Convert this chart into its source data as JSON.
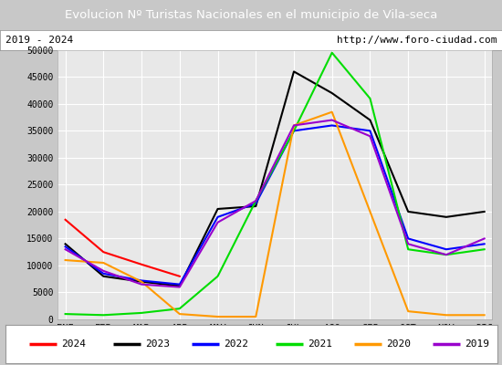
{
  "title": "Evolucion Nº Turistas Nacionales en el municipio de Vila-seca",
  "subtitle_left": "2019 - 2024",
  "subtitle_right": "http://www.foro-ciudad.com",
  "title_bg_color": "#4d8fcc",
  "title_text_color": "#ffffff",
  "plot_bg_color": "#e8e8e8",
  "months": [
    "ENE",
    "FEB",
    "MAR",
    "ABR",
    "MAY",
    "JUN",
    "JUL",
    "AGO",
    "SEP",
    "OCT",
    "NOV",
    "DIC"
  ],
  "ylim": [
    0,
    50000
  ],
  "yticks": [
    0,
    5000,
    10000,
    15000,
    20000,
    25000,
    30000,
    35000,
    40000,
    45000,
    50000
  ],
  "series": {
    "2024": {
      "color": "#ff0000",
      "data": [
        18500,
        12500,
        10200,
        8000,
        null,
        null,
        null,
        null,
        null,
        null,
        null,
        null
      ]
    },
    "2023": {
      "color": "#000000",
      "data": [
        14000,
        8000,
        7000,
        6200,
        20500,
        21000,
        46000,
        42000,
        37000,
        20000,
        19000,
        20000
      ]
    },
    "2022": {
      "color": "#0000ff",
      "data": [
        13500,
        8500,
        7200,
        6500,
        19000,
        21500,
        35000,
        36000,
        35000,
        15000,
        13000,
        14000
      ]
    },
    "2021": {
      "color": "#00dd00",
      "data": [
        1000,
        800,
        1200,
        2000,
        8000,
        22000,
        35000,
        49500,
        41000,
        13000,
        12000,
        13000
      ]
    },
    "2020": {
      "color": "#ff9900",
      "data": [
        11000,
        10500,
        7000,
        1000,
        500,
        500,
        36000,
        38500,
        20000,
        1500,
        800,
        800
      ]
    },
    "2019": {
      "color": "#9900cc",
      "data": [
        13000,
        9000,
        6500,
        6000,
        18000,
        22000,
        36000,
        37000,
        34000,
        14000,
        12000,
        15000
      ]
    }
  },
  "legend_order": [
    "2024",
    "2023",
    "2022",
    "2021",
    "2020",
    "2019"
  ]
}
